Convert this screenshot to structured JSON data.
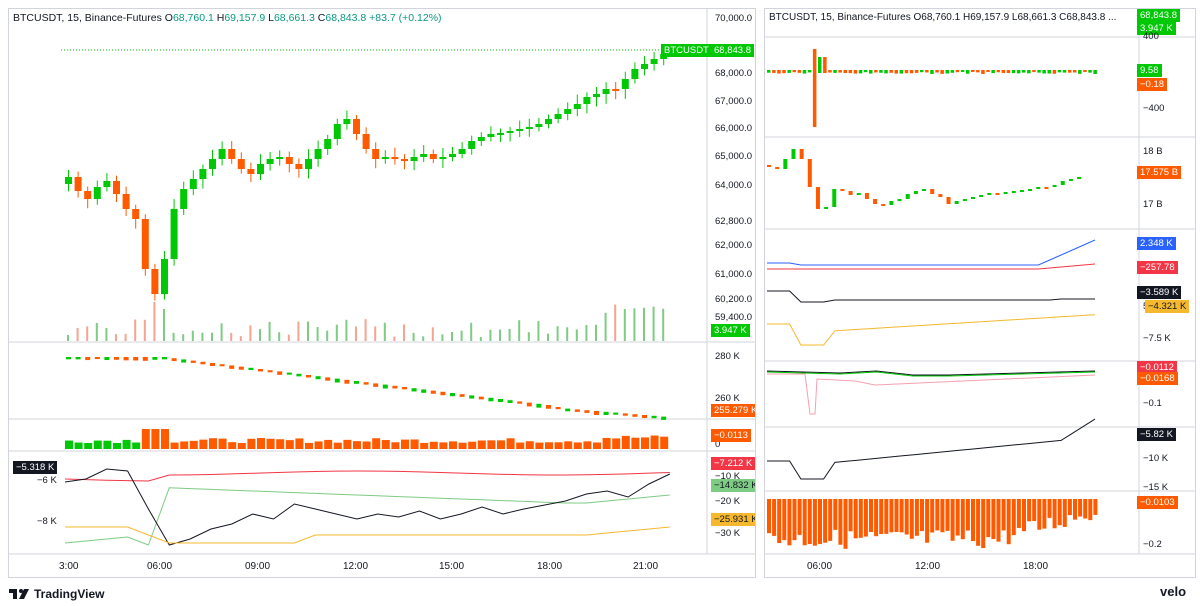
{
  "left_chart": {
    "symbol": "BTCUSDT",
    "interval": "15",
    "exchange": "Binance-Futures",
    "ohlc": {
      "o_label": "O",
      "o": "68,760.1",
      "h_label": "H",
      "h": "69,157.9",
      "l_label": "L",
      "l": "68,661.3",
      "c_label": "C",
      "c": "68,843.8",
      "change": "+83.7 (+0.12%)"
    },
    "price_axis": [
      "70,000.0",
      "68,000.0",
      "67,000.0",
      "66,000.0",
      "65,000.0",
      "64,000.0",
      "62,800.0",
      "62,000.0",
      "61,000.0",
      "60,200.0",
      "59,400.0"
    ],
    "symbol_tag": "BTCUSDT",
    "last_price_tag": "68,843.8",
    "volume_tag": "3.947 K",
    "pane2_axis": [
      "280 K",
      "260 K"
    ],
    "pane2_tag": "255.279 K",
    "pane3_axis": [
      "0"
    ],
    "pane3_tag": "−0.0113",
    "pane4_axis": [
      "−6 K",
      "−8 K",
      "−10 K",
      "−20 K",
      "−30 K"
    ],
    "pane4_left_tag": "−5.318 K",
    "pane4_tags": [
      "−7.212 K",
      "−14.832 K",
      "−25.931 K"
    ],
    "time_axis": [
      "3:00",
      "06:00",
      "09:00",
      "12:00",
      "15:00",
      "18:00",
      "21:00"
    ],
    "colors": {
      "up": "#089981",
      "up_bright": "#00c805",
      "down": "#ff5a00",
      "grid": "#d1d4dc"
    }
  },
  "right_chart": {
    "title": "BTCUSDT, 15, Binance-Futures O68,760.1 H69,157.9 L68,661.3 C68,843.8 ...",
    "pane1_tags": [
      "68,843.8",
      "3.947 K"
    ],
    "pane1_axis": [
      "400",
      "−400"
    ],
    "pane1_value_tags": [
      "9.58",
      "−0.18"
    ],
    "pane2_axis": [
      "18 B",
      "17 B"
    ],
    "pane2_tag": "17.575 B",
    "pane3_tags": [
      "2.348 K",
      "−257.78",
      "−3.589 K",
      "−4.321 K"
    ],
    "pane3_axis": [
      "5",
      "−7.5 K"
    ],
    "pane4_tags": [
      "−0.0112",
      "−0.0168"
    ],
    "pane4_axis": [
      "−0.1"
    ],
    "pane5_tag": "−5.82 K",
    "pane5_axis": [
      "−10 K",
      "−15 K"
    ],
    "pane6_tag": "−0.0103",
    "pane6_axis": [
      "−0.2"
    ],
    "time_axis": [
      "06:00",
      "12:00",
      "18:00"
    ]
  },
  "footer": {
    "tradingview": "TradingView",
    "velo": "velo"
  }
}
